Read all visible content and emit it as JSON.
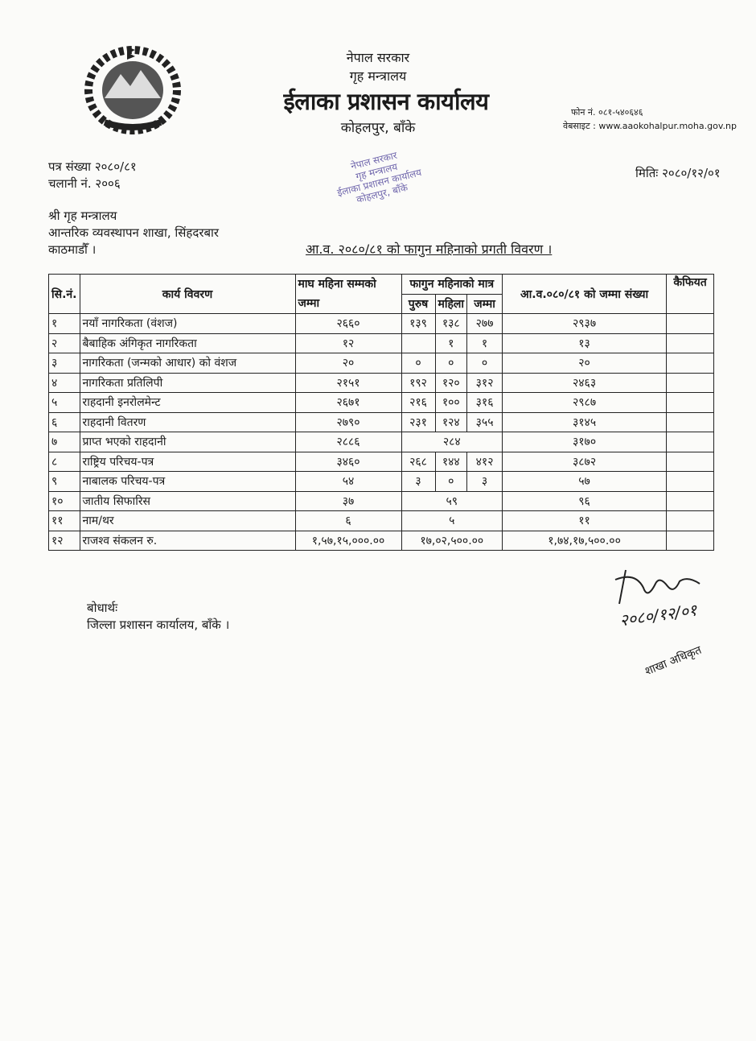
{
  "letterhead": {
    "line1": "नेपाल सरकार",
    "line2": "गृह मन्त्रालय",
    "office": "ईलाका प्रशासन कार्यालय",
    "location": "कोहलपुर, बाँके",
    "phone": "फोन नं. ०८१-५४०६४६",
    "website": "वेबसाइट : www.aaokohalpur.moha.gov.np"
  },
  "stamp": {
    "lines": [
      "नेपाल सरकार",
      "गृह मन्त्रालय",
      "ईलाका प्रशासन कार्यालय",
      "कोहलपुर, बाँके"
    ]
  },
  "ref": {
    "patra_sankhya": "पत्र संख्या २०८०/८१",
    "chalani": "चलानी नं. २००६",
    "date": "मितिः २०८०/१२/०१"
  },
  "recipient": {
    "line1": "श्री गृह मन्त्रालय",
    "line2": "आन्तरिक व्यवस्थापन शाखा, सिंहदरबार",
    "line3": "काठमाडौँ ।"
  },
  "subject": "आ.व. २०८०/८१ को फागुन महिनाको प्रगती विवरण ।",
  "table": {
    "headers": {
      "sn": "सि.नं.",
      "desc": "कार्य विवरण",
      "magh": "माघ महिना सम्मको जम्मा",
      "fagun": "फागुन महिनाको मात्र",
      "male": "पुरुष",
      "female": "महिला",
      "fagun_total": "जम्मा",
      "fy_total": "आ.व.०८०/८१ को जम्मा संख्या",
      "remarks": "कैफियत"
    },
    "rows": [
      {
        "sn": "१",
        "desc": "नयाँ नागरिकता (वंशज)",
        "magh": "२६६०",
        "male": "१३९",
        "female": "१३८",
        "total": "२७७",
        "fy": "२९३७"
      },
      {
        "sn": "२",
        "desc": "बैबाहिक अंगिकृत नागरिकता",
        "magh": "१२",
        "male": "",
        "female": "१",
        "total": "१",
        "fy": "१३"
      },
      {
        "sn": "३",
        "desc": "नागरिकता (जन्मको आधार) को वंशज",
        "magh": "२०",
        "male": "०",
        "female": "०",
        "total": "०",
        "fy": "२०"
      },
      {
        "sn": "४",
        "desc": "नागरिकता प्रतिलिपी",
        "magh": "२१५१",
        "male": "१९२",
        "female": "१२०",
        "total": "३१२",
        "fy": "२४६३"
      },
      {
        "sn": "५",
        "desc": "राहदानी इनरोलमेन्ट",
        "magh": "२६७१",
        "male": "२१६",
        "female": "१००",
        "total": "३१६",
        "fy": "२९८७"
      },
      {
        "sn": "६",
        "desc": "राहदानी वितरण",
        "magh": "२७९०",
        "male": "२३१",
        "female": "१२४",
        "total": "३५५",
        "fy": "३१४५"
      },
      {
        "sn": "७",
        "desc": "प्राप्त भएको राहदानी",
        "magh": "२८८६",
        "merged": "२८४",
        "fy": "३१७०"
      },
      {
        "sn": "८",
        "desc": "राष्ट्रिय परिचय-पत्र",
        "magh": "३४६०",
        "male": "२६८",
        "female": "१४४",
        "total": "४१२",
        "fy": "३८७२"
      },
      {
        "sn": "९",
        "desc": "नाबालक परिचय-पत्र",
        "magh": "५४",
        "male": "३",
        "female": "०",
        "total": "३",
        "fy": "५७"
      },
      {
        "sn": "१०",
        "desc": "जातीय सिफारिस",
        "magh": "३७",
        "merged": "५९",
        "fy": "९६"
      },
      {
        "sn": "११",
        "desc": "नाम/थर",
        "magh": "६",
        "merged": "५",
        "fy": "११"
      },
      {
        "sn": "१२",
        "desc": "राजश्व संकलन रु.",
        "magh": "१,५७,१५,०००.००",
        "merged": "१७,०२,५००.००",
        "fy": "१,७४,१७,५००.००"
      }
    ]
  },
  "cc": {
    "label": "बोधार्थः",
    "line": "जिल्ला प्रशासन कार्यालय, बाँके ।"
  },
  "signature": {
    "date": "२०८०/१२/०१",
    "role": "शाखा अधिकृत"
  }
}
